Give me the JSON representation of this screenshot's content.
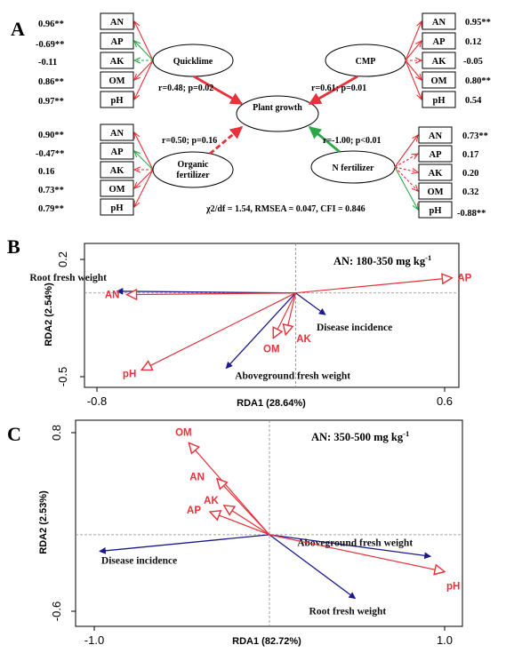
{
  "colors": {
    "red": "#e8313a",
    "green": "#2ba84a",
    "blue": "#1a1a8c",
    "black": "#000000",
    "grid": "#888888"
  },
  "panel_a": {
    "panel_letter": "A",
    "center": "Plant growth",
    "fit_stats": "χ2/df = 1.54, RMSEA = 0.047, CFI = 0.846",
    "blocks": [
      {
        "name": "Quicklime",
        "effect_label": "r=0.48; p=0.02",
        "effect_style": "red-solid",
        "side": "left",
        "indicators": [
          {
            "label": "AN",
            "loading": "0.96**",
            "style": "red-solid"
          },
          {
            "label": "AP",
            "loading": "-0.69**",
            "style": "green-solid"
          },
          {
            "label": "AK",
            "loading": "-0.11",
            "style": "green-dashed"
          },
          {
            "label": "OM",
            "loading": "0.86**",
            "style": "red-solid"
          },
          {
            "label": "pH",
            "loading": "0.97**",
            "style": "red-solid"
          }
        ]
      },
      {
        "name": "CMP",
        "effect_label": "r=0.61; p=0.01",
        "effect_style": "red-solid",
        "side": "right",
        "indicators": [
          {
            "label": "AN",
            "loading": "0.95**",
            "style": "red-solid"
          },
          {
            "label": "AP",
            "loading": "0.12",
            "style": "red-solid"
          },
          {
            "label": "AK",
            "loading": "-0.05",
            "style": "red-dashed"
          },
          {
            "label": "OM",
            "loading": "0.80**",
            "style": "red-solid"
          },
          {
            "label": "pH",
            "loading": "0.54",
            "style": "red-solid"
          }
        ]
      },
      {
        "name": "Organic fertilizer",
        "name_lines": [
          "Organic",
          "fertilizer"
        ],
        "effect_label": "r=0.50; p=0.16",
        "effect_style": "red-dashed",
        "side": "left",
        "indicators": [
          {
            "label": "AN",
            "loading": "0.90**",
            "style": "red-solid"
          },
          {
            "label": "AP",
            "loading": "-0.47**",
            "style": "green-solid"
          },
          {
            "label": "AK",
            "loading": "0.16",
            "style": "red-dashed"
          },
          {
            "label": "OM",
            "loading": "0.73**",
            "style": "red-solid"
          },
          {
            "label": "pH",
            "loading": "0.79**",
            "style": "red-solid"
          }
        ]
      },
      {
        "name": "N fertilizer",
        "effect_label": "r=-1.00; p<0.01",
        "effect_style": "green-solid",
        "side": "right",
        "indicators": [
          {
            "label": "AN",
            "loading": "0.73**",
            "style": "red-solid"
          },
          {
            "label": "AP",
            "loading": "0.17",
            "style": "red-dashed"
          },
          {
            "label": "AK",
            "loading": "0.20",
            "style": "red-dashed"
          },
          {
            "label": "OM",
            "loading": "0.32",
            "style": "red-dashed"
          },
          {
            "label": "pH",
            "loading": "-0.88**",
            "style": "green-solid"
          }
        ]
      }
    ]
  },
  "chart_data": [
    {
      "type": "biplot",
      "panel_letter": "B",
      "title": "AN: 180-350 mg kg",
      "title_superscript": "-1",
      "xlabel": "RDA1 (28.64%)",
      "ylabel": "RDA2 (2.54%)",
      "xlim": [
        -0.8,
        0.6
      ],
      "ylim": [
        -0.5,
        0.2
      ],
      "x_ticks": [
        "-0.8",
        "0.6"
      ],
      "y_ticks": [
        "0.2",
        "-0.5"
      ],
      "reference_lines": {
        "x": 0,
        "y": 0
      },
      "response_vectors": [
        {
          "name": "Root fresh weight",
          "x": -0.72,
          "y": 0.01,
          "color": "#1a1a8c"
        },
        {
          "name": "Disease incidence",
          "x": 0.12,
          "y": -0.13,
          "color": "#1a1a8c"
        },
        {
          "name": "Aboveground fresh weight",
          "x": -0.28,
          "y": -0.45,
          "color": "#1a1a8c"
        }
      ],
      "explanatory_vectors": [
        {
          "name": "AP",
          "x": 0.63,
          "y": 0.09,
          "color": "#e8313a"
        },
        {
          "name": "AN",
          "x": -0.68,
          "y": -0.01,
          "color": "#e8313a"
        },
        {
          "name": "AK",
          "x": -0.04,
          "y": -0.25,
          "color": "#e8313a"
        },
        {
          "name": "OM",
          "x": -0.09,
          "y": -0.27,
          "color": "#e8313a"
        },
        {
          "name": "pH",
          "x": -0.62,
          "y": -0.46,
          "color": "#e8313a"
        }
      ]
    },
    {
      "type": "biplot",
      "panel_letter": "C",
      "title": "AN: 350-500 mg kg",
      "title_superscript": "-1",
      "xlabel": "RDA1 (82.72%)",
      "ylabel": "RDA2 (2.53%)",
      "xlim": [
        -1.0,
        1.0
      ],
      "ylim": [
        -0.6,
        0.8
      ],
      "x_ticks": [
        "-1.0",
        "1.0"
      ],
      "y_ticks": [
        "0.8",
        "-0.6"
      ],
      "reference_lines": {
        "x": 0,
        "y": 0
      },
      "response_vectors": [
        {
          "name": "Disease incidence",
          "x": -0.97,
          "y": -0.13,
          "color": "#1a1a8c"
        },
        {
          "name": "Aboveground fresh weight",
          "x": 0.92,
          "y": -0.17,
          "color": "#1a1a8c"
        },
        {
          "name": "Root fresh weight",
          "x": 0.49,
          "y": -0.5,
          "color": "#1a1a8c"
        }
      ],
      "explanatory_vectors": [
        {
          "name": "OM",
          "x": -0.46,
          "y": 0.72,
          "color": "#e8313a"
        },
        {
          "name": "AN",
          "x": -0.3,
          "y": 0.44,
          "color": "#e8313a"
        },
        {
          "name": "AK",
          "x": -0.26,
          "y": 0.23,
          "color": "#e8313a"
        },
        {
          "name": "AP",
          "x": -0.34,
          "y": 0.18,
          "color": "#e8313a"
        },
        {
          "name": "pH",
          "x": 1.0,
          "y": -0.29,
          "color": "#e8313a"
        }
      ]
    }
  ]
}
